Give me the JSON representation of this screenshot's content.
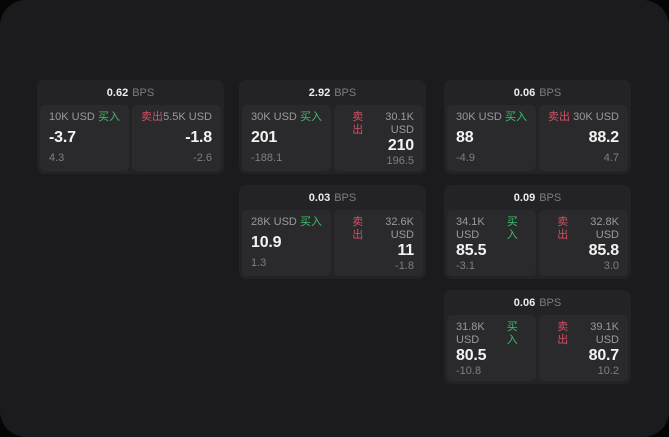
{
  "labels": {
    "bps": "BPS",
    "buy": "买入",
    "sell": "卖出"
  },
  "colors": {
    "outer_background": "#050505",
    "surface_background": "#1b1b1d",
    "card_background": "#232325",
    "panel_background": "#2a2a2c",
    "buy_accent": "#3cbf6e",
    "sell_accent": "#d15066",
    "text_primary": "#f2f2f3",
    "text_muted": "#9a9a9e"
  },
  "cards": [
    {
      "bps": "0.62",
      "buy": {
        "notional": "10K USD",
        "price": "-3.7",
        "delta": "4.3"
      },
      "sell": {
        "notional": "5.5K USD",
        "price": "-1.8",
        "delta": "-2.6"
      }
    },
    {
      "bps": "2.92",
      "buy": {
        "notional": "30K USD",
        "price": "201",
        "delta": "-188.1"
      },
      "sell": {
        "notional": "30.1K USD",
        "price": "210",
        "delta": "196.5"
      }
    },
    {
      "bps": "0.06",
      "buy": {
        "notional": "30K USD",
        "price": "88",
        "delta": "-4.9"
      },
      "sell": {
        "notional": "30K USD",
        "price": "88.2",
        "delta": "4.7"
      }
    },
    {
      "bps": "0.03",
      "buy": {
        "notional": "28K USD",
        "price": "10.9",
        "delta": "1.3"
      },
      "sell": {
        "notional": "32.6K USD",
        "price": "11",
        "delta": "-1.8"
      }
    },
    {
      "bps": "0.09",
      "buy": {
        "notional": "34.1K USD",
        "price": "85.5",
        "delta": "-3.1"
      },
      "sell": {
        "notional": "32.8K USD",
        "price": "85.8",
        "delta": "3.0"
      }
    },
    {
      "bps": "0.06",
      "buy": {
        "notional": "31.8K USD",
        "price": "80.5",
        "delta": "-10.8"
      },
      "sell": {
        "notional": "39.1K USD",
        "price": "80.7",
        "delta": "10.2"
      }
    }
  ]
}
